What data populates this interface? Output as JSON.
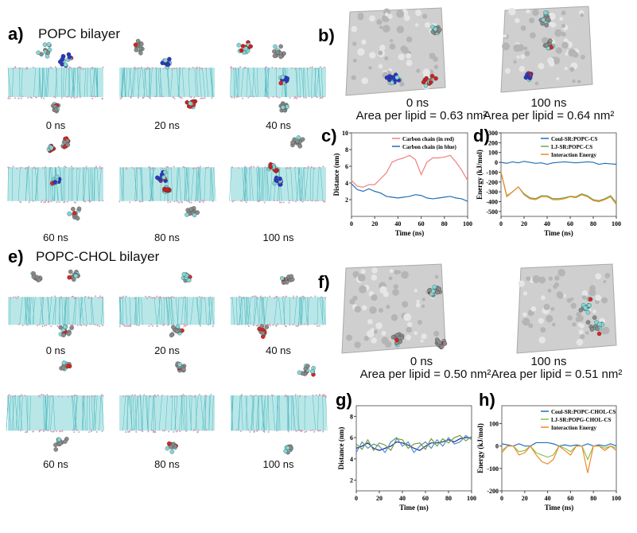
{
  "panels": {
    "a": {
      "label": "a)",
      "title": "POPC bilayer",
      "times": [
        "0 ns",
        "20 ns",
        "40 ns",
        "60 ns",
        "80 ns",
        "100 ns"
      ]
    },
    "b": {
      "label": "b)",
      "times": [
        "0 ns",
        "100 ns"
      ],
      "area": [
        "Area per lipid = 0.63 nm²",
        "Area per lipid = 0.64 nm²"
      ]
    },
    "c": {
      "label": "c)"
    },
    "d": {
      "label": "d)"
    },
    "e": {
      "label": "e)",
      "title": "POPC-CHOL bilayer",
      "times": [
        "0 ns",
        "20 ns",
        "40 ns",
        "60 ns",
        "80 ns",
        "100 ns"
      ]
    },
    "f": {
      "label": "f)",
      "times": [
        "0 ns",
        "100 ns"
      ],
      "area": [
        "Area per lipid = 0.50 nm²",
        "Area per lipid = 0.51 nm²"
      ]
    },
    "g": {
      "label": "g)"
    },
    "h": {
      "label": "h)"
    }
  },
  "colors": {
    "lipid": "#7fd3d6",
    "headgroup": "#d9a0b8",
    "molecule_gray": "#8a8a8a",
    "molecule_red": "#cc1f1f",
    "molecule_blue": "#2a36c8",
    "membrane_surface": "#cfcfcf"
  },
  "chart_data": [
    {
      "panel": "c",
      "type": "line",
      "xlabel": "Time (ns)",
      "ylabel": "Distance (nm)",
      "xlim": [
        0,
        100
      ],
      "ylim": [
        0,
        10
      ],
      "xticks": [
        "0",
        "20",
        "40",
        "60",
        "80",
        "100"
      ],
      "yticks": [
        "2",
        "4",
        "6",
        "8",
        "10"
      ],
      "legend": "top-right",
      "x": [
        0,
        5,
        10,
        15,
        20,
        25,
        30,
        35,
        40,
        45,
        50,
        55,
        60,
        65,
        70,
        75,
        80,
        85,
        90,
        95,
        100
      ],
      "series": [
        {
          "name": "Carbon chain (in red)",
          "color": "#f08080",
          "values": [
            4.3,
            3.6,
            3.5,
            3.8,
            3.8,
            4.5,
            5.2,
            6.5,
            6.8,
            7.0,
            7.3,
            6.8,
            5.0,
            6.5,
            7.0,
            7.0,
            7.1,
            7.3,
            6.5,
            5.5,
            4.3
          ]
        },
        {
          "name": "Carbon chain (in blue)",
          "color": "#1f6fb4",
          "values": [
            3.9,
            3.2,
            3.0,
            3.3,
            3.0,
            2.8,
            2.4,
            2.3,
            2.2,
            2.3,
            2.4,
            2.6,
            2.5,
            2.2,
            2.1,
            2.2,
            2.3,
            2.4,
            2.2,
            2.1,
            1.8
          ]
        }
      ]
    },
    {
      "panel": "d",
      "type": "line",
      "xlabel": "Time (ns)",
      "ylabel": "Energy (kJ/mol)",
      "xlim": [
        0,
        100
      ],
      "ylim": [
        -550,
        300
      ],
      "xticks": [
        "0",
        "20",
        "40",
        "60",
        "80",
        "100"
      ],
      "yticks": [
        "-500",
        "-400",
        "-300",
        "-200",
        "-100",
        "0",
        "100",
        "200",
        "300"
      ],
      "legend": "top-right",
      "x": [
        0,
        5,
        10,
        15,
        20,
        25,
        30,
        35,
        40,
        45,
        50,
        55,
        60,
        65,
        70,
        75,
        80,
        85,
        90,
        95,
        100
      ],
      "series": [
        {
          "name": "Coul-SR:POPC-CS",
          "color": "#1f6fb4",
          "values": [
            0,
            -10,
            5,
            -5,
            10,
            0,
            -10,
            -5,
            -20,
            -5,
            0,
            5,
            0,
            -5,
            0,
            5,
            0,
            -20,
            -10,
            -15,
            -20
          ]
        },
        {
          "name": "LJ-SR:POPC-CS",
          "color": "#6aa84f",
          "values": [
            -100,
            -340,
            -300,
            -250,
            -320,
            -360,
            -370,
            -340,
            -340,
            -370,
            -370,
            -360,
            -345,
            -350,
            -320,
            -340,
            -380,
            -390,
            -370,
            -340,
            -410
          ]
        },
        {
          "name": "Interaction Energy",
          "color": "#f0892a",
          "values": [
            -100,
            -350,
            -300,
            -250,
            -330,
            -370,
            -380,
            -350,
            -350,
            -380,
            -380,
            -370,
            -350,
            -360,
            -330,
            -350,
            -390,
            -400,
            -380,
            -350,
            -430
          ]
        }
      ]
    },
    {
      "panel": "g",
      "type": "line",
      "xlabel": "Time (ns)",
      "ylabel": "Distance (nm)",
      "xlim": [
        0,
        100
      ],
      "ylim": [
        1,
        9
      ],
      "xticks": [
        "0",
        "20",
        "40",
        "60",
        "80",
        "100"
      ],
      "yticks": [
        "2",
        "4",
        "6",
        "8"
      ],
      "x": [
        0,
        5,
        10,
        15,
        20,
        25,
        30,
        35,
        40,
        45,
        50,
        55,
        60,
        65,
        70,
        75,
        80,
        85,
        90,
        95,
        100
      ],
      "series": [
        {
          "color": "#1a2a9a",
          "values": [
            5.0,
            5.2,
            5.5,
            5.0,
            4.8,
            5.0,
            5.2,
            5.6,
            5.5,
            5.3,
            5.0,
            4.8,
            5.2,
            5.5,
            5.5,
            5.6,
            5.8,
            5.6,
            5.9,
            6.0,
            6.0
          ]
        },
        {
          "color": "#4a90c8",
          "values": [
            4.6,
            5.6,
            5.0,
            5.4,
            5.2,
            4.6,
            5.6,
            6.0,
            5.2,
            5.6,
            4.6,
            5.2,
            5.6,
            5.0,
            5.8,
            5.2,
            6.0,
            5.4,
            5.6,
            6.2,
            5.8
          ]
        },
        {
          "color": "#7a9a3a",
          "values": [
            5.4,
            4.9,
            5.8,
            4.8,
            5.5,
            5.3,
            4.8,
            5.9,
            5.8,
            5.0,
            5.4,
            5.5,
            4.9,
            5.9,
            5.2,
            5.9,
            5.5,
            6.0,
            6.2,
            5.7,
            6.1
          ]
        }
      ]
    },
    {
      "panel": "h",
      "type": "line",
      "xlabel": "Time (ns)",
      "ylabel": "Energy (kJ/mol)",
      "xlim": [
        0,
        100
      ],
      "ylim": [
        -200,
        180
      ],
      "xticks": [
        "0",
        "20",
        "40",
        "60",
        "80",
        "100"
      ],
      "yticks": [
        "-200",
        "-100",
        "0",
        "100"
      ],
      "legend": "top-right",
      "x": [
        0,
        5,
        10,
        15,
        20,
        25,
        30,
        35,
        40,
        45,
        50,
        55,
        60,
        65,
        70,
        75,
        80,
        85,
        90,
        95,
        100
      ],
      "series": [
        {
          "name": "Coul-SR:POPC-CHOL-CS",
          "color": "#1f6fb4",
          "values": [
            10,
            5,
            0,
            10,
            0,
            0,
            15,
            15,
            15,
            10,
            0,
            5,
            0,
            5,
            0,
            10,
            0,
            5,
            0,
            10,
            0
          ]
        },
        {
          "name": "LJ-SR:POPG-CHOL-CS",
          "color": "#8bc34a",
          "values": [
            -20,
            0,
            0,
            -25,
            -20,
            0,
            -30,
            -40,
            -50,
            -40,
            0,
            -10,
            -25,
            0,
            0,
            -60,
            0,
            0,
            -10,
            0,
            -10
          ]
        },
        {
          "name": "Interaction Energy",
          "color": "#f0892a",
          "values": [
            -30,
            0,
            0,
            -40,
            -30,
            0,
            -40,
            -70,
            -80,
            -60,
            0,
            -20,
            -40,
            0,
            0,
            -120,
            0,
            0,
            -20,
            0,
            -20
          ]
        }
      ]
    }
  ]
}
